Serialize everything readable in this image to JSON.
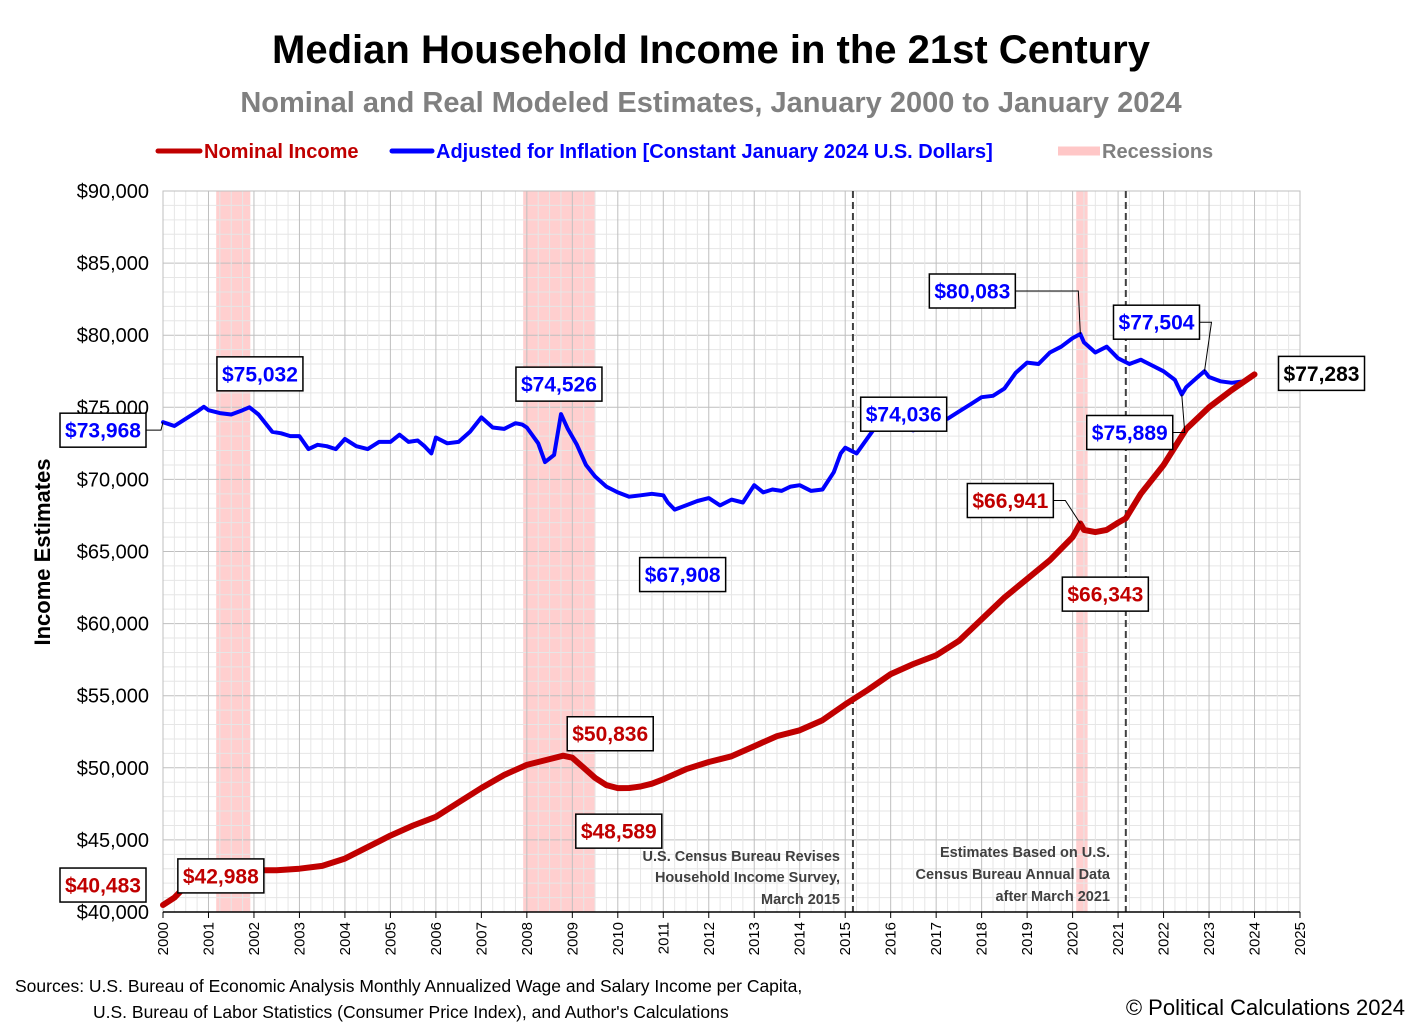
{
  "title": "Median Household Income in the 21st Century",
  "subtitle": "Nominal and Real Modeled Estimates, January 2000 to January 2024",
  "sources": [
    "Sources: U.S. Bureau of Economic Analysis Monthly Annualized Wage and Salary Income per Capita,",
    "U.S. Bureau of Labor Statistics (Consumer Price Index), and Author's Calculations"
  ],
  "copyright": "© Political Calculations 2024",
  "colors": {
    "nominal": "#c00000",
    "real": "#0000ff",
    "recession": "#ffc7c7",
    "grid": "#d9d9d9",
    "note": "#404040"
  },
  "chart_data": {
    "type": "line",
    "title": "Median Household Income in the 21st Century",
    "subtitle": "Nominal and Real Modeled Estimates, January 2000 to January 2024",
    "ylabel": "Income Estimates",
    "xlabel": "",
    "xlim": [
      2000,
      2025
    ],
    "ylim": [
      40000,
      90000
    ],
    "grid": true,
    "legend_position": "top",
    "x_ticks": [
      "2000",
      "2001",
      "2002",
      "2003",
      "2004",
      "2005",
      "2006",
      "2007",
      "2008",
      "2009",
      "2010",
      "2011",
      "2012",
      "2013",
      "2014",
      "2015",
      "2016",
      "2017",
      "2018",
      "2019",
      "2020",
      "2021",
      "2022",
      "2023",
      "2024",
      "2025"
    ],
    "y_ticks": [
      "$40,000",
      "$45,000",
      "$50,000",
      "$55,000",
      "$60,000",
      "$65,000",
      "$70,000",
      "$75,000",
      "$80,000",
      "$85,000",
      "$90,000"
    ],
    "y_tick_values": [
      40000,
      45000,
      50000,
      55000,
      60000,
      65000,
      70000,
      75000,
      80000,
      85000,
      90000
    ],
    "legend": [
      {
        "name": "Nominal Income",
        "color": "#c00000"
      },
      {
        "name": "Adjusted for Inflation [Constant January 2024 U.S. Dollars]",
        "color": "#0000ff"
      },
      {
        "name": "Recessions",
        "color": "#ffc7c7"
      }
    ],
    "recessions": [
      [
        2001.17,
        2001.92
      ],
      [
        2007.92,
        2009.5
      ],
      [
        2020.08,
        2020.33
      ]
    ],
    "reference_lines": [
      {
        "x": 2015.17,
        "label": [
          "U.S. Census Bureau Revises",
          "Household Income Survey,",
          "March 2015"
        ]
      },
      {
        "x": 2021.17,
        "label": [
          "Estimates Based on U.S.",
          "Census Bureau Annual Data",
          "after March 2021"
        ]
      }
    ],
    "series": [
      {
        "name": "Nominal Income",
        "color": "#c00000",
        "x": [
          2000,
          2000.25,
          2000.5,
          2000.75,
          2001,
          2001.25,
          2001.5,
          2001.75,
          2002,
          2002.5,
          2003,
          2003.5,
          2004,
          2004.5,
          2005,
          2005.5,
          2006,
          2006.5,
          2007,
          2007.5,
          2008,
          2008.5,
          2008.8,
          2009,
          2009.25,
          2009.5,
          2009.75,
          2010,
          2010.25,
          2010.5,
          2010.75,
          2011,
          2011.5,
          2012,
          2012.5,
          2013,
          2013.5,
          2014,
          2014.5,
          2015,
          2015.5,
          2016,
          2016.5,
          2017,
          2017.5,
          2018,
          2018.5,
          2019,
          2019.5,
          2020,
          2020.17,
          2020.25,
          2020.5,
          2020.75,
          2021,
          2021.17,
          2021.5,
          2022,
          2022.5,
          2023,
          2023.5,
          2024
        ],
        "values": [
          40483,
          41000,
          41800,
          42400,
          42800,
          42988,
          43000,
          43000,
          42900,
          42900,
          43000,
          43200,
          43700,
          44500,
          45300,
          46000,
          46600,
          47600,
          48600,
          49500,
          50200,
          50600,
          50836,
          50700,
          50000,
          49300,
          48800,
          48589,
          48600,
          48700,
          48900,
          49200,
          49900,
          50400,
          50800,
          51500,
          52200,
          52600,
          53300,
          54400,
          55400,
          56500,
          57200,
          57800,
          58800,
          60300,
          61800,
          63100,
          64400,
          66000,
          66941,
          66500,
          66343,
          66500,
          67000,
          67300,
          69000,
          71000,
          73500,
          75000,
          76200,
          77283
        ]
      },
      {
        "name": "Adjusted for Inflation [Constant January 2024 U.S. Dollars]",
        "color": "#0000ff",
        "x": [
          2000,
          2000.25,
          2000.5,
          2000.75,
          2000.9,
          2001,
          2001.25,
          2001.5,
          2001.75,
          2001.9,
          2002.1,
          2002.4,
          2002.6,
          2002.8,
          2003,
          2003.2,
          2003.4,
          2003.6,
          2003.8,
          2004,
          2004.25,
          2004.5,
          2004.75,
          2005,
          2005.2,
          2005.4,
          2005.6,
          2005.75,
          2005.9,
          2006,
          2006.25,
          2006.5,
          2006.75,
          2007,
          2007.25,
          2007.5,
          2007.75,
          2007.9,
          2008,
          2008.25,
          2008.4,
          2008.6,
          2008.75,
          2008.9,
          2009.1,
          2009.3,
          2009.5,
          2009.75,
          2010,
          2010.25,
          2010.5,
          2010.75,
          2011,
          2011.1,
          2011.25,
          2011.5,
          2011.75,
          2012,
          2012.25,
          2012.5,
          2012.75,
          2013,
          2013.2,
          2013.4,
          2013.6,
          2013.8,
          2014,
          2014.25,
          2014.5,
          2014.75,
          2014.9,
          2015,
          2015.25,
          2015.5,
          2015.75,
          2016,
          2016.25,
          2016.5,
          2016.75,
          2017,
          2017.25,
          2017.5,
          2017.75,
          2018,
          2018.25,
          2018.5,
          2018.75,
          2019,
          2019.25,
          2019.5,
          2019.75,
          2020,
          2020.17,
          2020.25,
          2020.5,
          2020.75,
          2021,
          2021.25,
          2021.5,
          2021.75,
          2022,
          2022.25,
          2022.4,
          2022.5,
          2022.75,
          2022.9,
          2023,
          2023.25,
          2023.5,
          2023.75,
          2023.9,
          2024
        ],
        "values": [
          73968,
          73700,
          74200,
          74700,
          75032,
          74800,
          74600,
          74500,
          74800,
          75000,
          74500,
          73300,
          73200,
          73000,
          73000,
          72100,
          72400,
          72300,
          72100,
          72800,
          72300,
          72100,
          72600,
          72600,
          73100,
          72600,
          72700,
          72300,
          71800,
          72900,
          72500,
          72600,
          73300,
          74300,
          73600,
          73500,
          73900,
          73800,
          73600,
          72500,
          71200,
          71700,
          74526,
          73500,
          72400,
          71000,
          70200,
          69500,
          69100,
          68800,
          68900,
          69000,
          68900,
          68400,
          67908,
          68200,
          68500,
          68700,
          68200,
          68600,
          68400,
          69600,
          69100,
          69300,
          69200,
          69500,
          69600,
          69200,
          69300,
          70500,
          71800,
          72200,
          71800,
          72900,
          74000,
          74036,
          73600,
          73400,
          73800,
          74036,
          74200,
          74700,
          75200,
          75700,
          75800,
          76300,
          77400,
          78100,
          78000,
          78800,
          79200,
          79800,
          80083,
          79500,
          78800,
          79200,
          78400,
          78000,
          78300,
          77900,
          77500,
          76900,
          75889,
          76400,
          77100,
          77504,
          77100,
          76800,
          76700,
          76800,
          77000,
          77283
        ]
      }
    ],
    "callouts": [
      {
        "series": "real",
        "text": "$73,968",
        "x": 2000,
        "y": 73968
      },
      {
        "series": "real",
        "text": "$75,032",
        "x": 2000.9,
        "y": 75032
      },
      {
        "series": "real",
        "text": "$74,526",
        "x": 2008.75,
        "y": 74526
      },
      {
        "series": "real",
        "text": "$67,908",
        "x": 2011.25,
        "y": 67908
      },
      {
        "series": "real",
        "text": "$74,036",
        "x": 2016,
        "y": 74036
      },
      {
        "series": "real",
        "text": "$80,083",
        "x": 2020.17,
        "y": 80083
      },
      {
        "series": "real",
        "text": "$77,504",
        "x": 2022.9,
        "y": 77504
      },
      {
        "series": "real",
        "text": "$75,889",
        "x": 2022.4,
        "y": 75889
      },
      {
        "series": "nominal",
        "text": "$40,483",
        "x": 2000,
        "y": 40483
      },
      {
        "series": "nominal",
        "text": "$42,988",
        "x": 2001.25,
        "y": 42988
      },
      {
        "series": "nominal",
        "text": "$50,836",
        "x": 2008.8,
        "y": 50836
      },
      {
        "series": "nominal",
        "text": "$48,589",
        "x": 2010,
        "y": 48589
      },
      {
        "series": "nominal",
        "text": "$66,941",
        "x": 2020.17,
        "y": 66941
      },
      {
        "series": "nominal",
        "text": "$66,343",
        "x": 2020.5,
        "y": 66343
      },
      {
        "series": "latest",
        "text": "$77,283",
        "x": 2024,
        "y": 77283
      }
    ]
  }
}
